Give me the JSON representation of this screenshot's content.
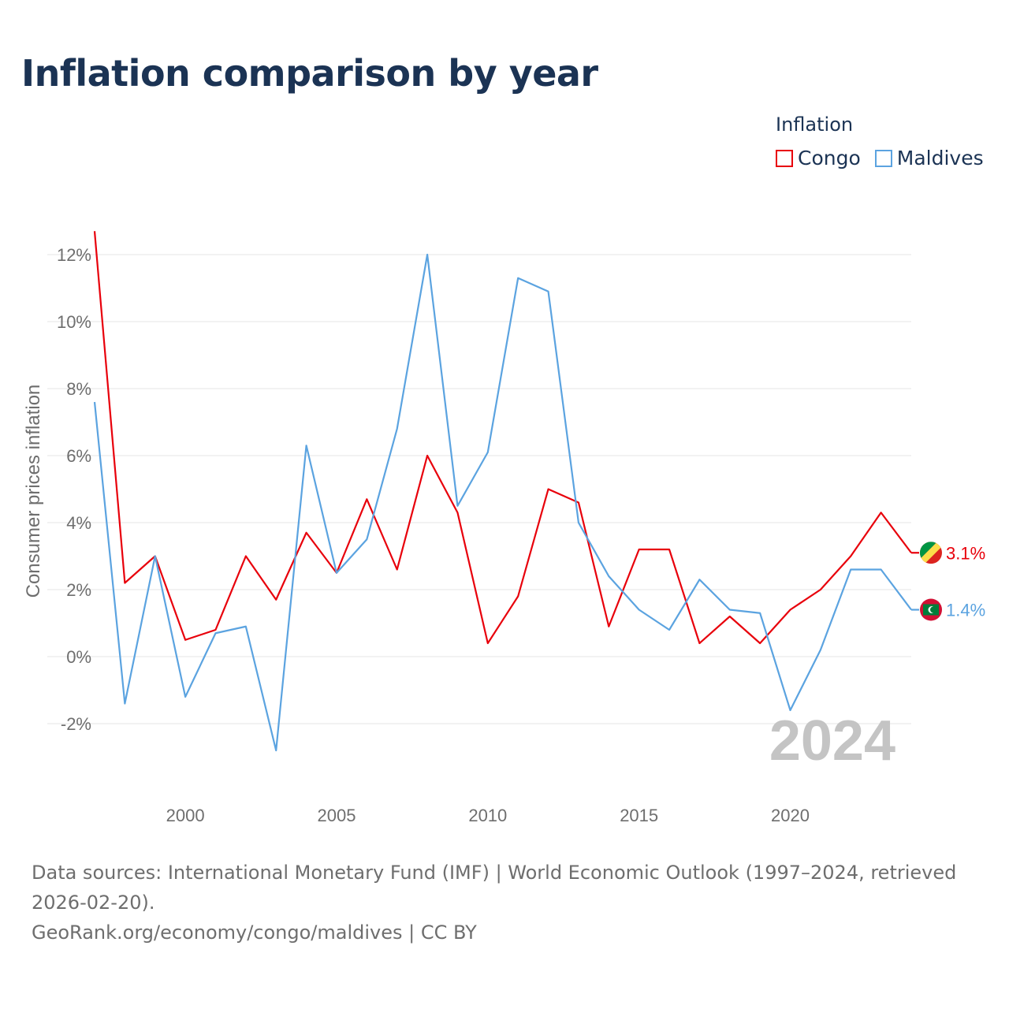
{
  "title": "Inflation comparison by year",
  "legend": {
    "title": "Inflation",
    "items": [
      {
        "label": "Congo",
        "color": "#e8000b"
      },
      {
        "label": "Maldives",
        "color": "#5ba3e0"
      }
    ]
  },
  "chart_data": {
    "type": "line",
    "title": "Inflation comparison by year",
    "xlabel": "",
    "ylabel": "Consumer prices inflation",
    "x": [
      1997,
      1998,
      1999,
      2000,
      2001,
      2002,
      2003,
      2004,
      2005,
      2006,
      2007,
      2008,
      2009,
      2010,
      2011,
      2012,
      2013,
      2014,
      2015,
      2016,
      2017,
      2018,
      2019,
      2020,
      2021,
      2022,
      2023,
      2024
    ],
    "xlim": [
      1997,
      2024
    ],
    "ylim": [
      -3,
      13
    ],
    "x_ticks": [
      2000,
      2005,
      2010,
      2015,
      2020
    ],
    "x_tick_labels": [
      "2000",
      "2005",
      "2010",
      "2015",
      "2020"
    ],
    "y_ticks": [
      -2,
      0,
      2,
      4,
      6,
      8,
      10,
      12
    ],
    "y_tick_labels": [
      "-2%",
      "0%",
      "2%",
      "4%",
      "6%",
      "8%",
      "10%",
      "12%"
    ],
    "grid": true,
    "series": [
      {
        "name": "Congo",
        "color": "#e8000b",
        "values": [
          12.7,
          2.2,
          3.0,
          0.5,
          0.8,
          3.0,
          1.7,
          3.7,
          2.5,
          4.7,
          2.6,
          6.0,
          4.3,
          0.4,
          1.8,
          5.0,
          4.6,
          0.9,
          3.2,
          3.2,
          0.4,
          1.2,
          0.4,
          1.4,
          2.0,
          3.0,
          4.3,
          3.1
        ],
        "end_label": "3.1%",
        "flag_icon": "congo-flag-icon"
      },
      {
        "name": "Maldives",
        "color": "#5ba3e0",
        "values": [
          7.6,
          -1.4,
          3.0,
          -1.2,
          0.7,
          0.9,
          -2.8,
          6.3,
          2.5,
          3.5,
          6.8,
          12.0,
          4.5,
          6.1,
          11.3,
          10.9,
          4.0,
          2.4,
          1.4,
          0.8,
          2.3,
          1.4,
          1.3,
          -1.6,
          0.2,
          2.6,
          2.6,
          1.4
        ],
        "end_label": "1.4%",
        "flag_icon": "maldives-flag-icon"
      }
    ],
    "annotation": "2024"
  },
  "footer": {
    "sources": "Data sources: International Monetary Fund (IMF) | World Economic Outlook (1997–2024, retrieved 2026-02-20).",
    "credit": "GeoRank.org/economy/congo/maldives | CC BY"
  }
}
